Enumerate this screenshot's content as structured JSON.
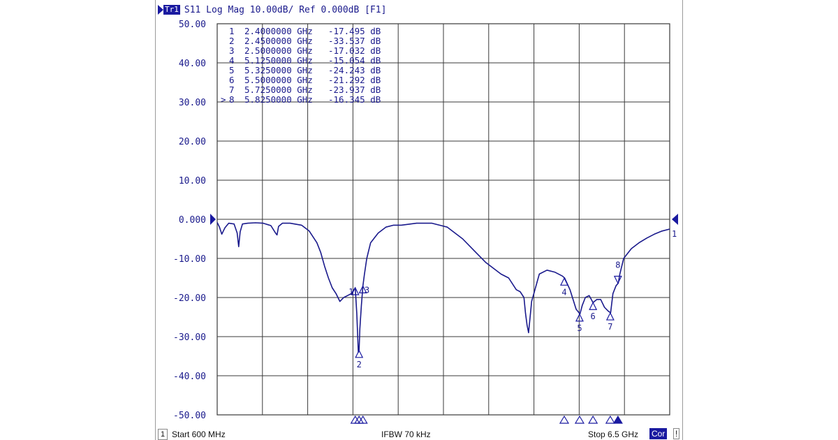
{
  "header": {
    "trace_badge": "Tr1",
    "title": "S11 Log Mag 10.00dB/ Ref 0.000dB [F1]"
  },
  "footer": {
    "channel": "1",
    "start": "Start 600 MHz",
    "ifbw": "IFBW 70 kHz",
    "stop": "Stop 6.5 GHz",
    "cor": "Cor",
    "status": "!"
  },
  "colors": {
    "trace": "#1a1a8c",
    "grid": "#3a3a3a",
    "marker": "#1a1aa0"
  },
  "chart_data": {
    "type": "line",
    "title": "S11 Log Mag 10.00dB/ Ref 0.000dB [F1]",
    "xlabel": "",
    "ylabel": "",
    "xlim": [
      0.6,
      6.5
    ],
    "ylim": [
      -50,
      50
    ],
    "x_unit": "GHz",
    "y_unit": "dB",
    "grid": true,
    "ytick_labels": [
      "50.00",
      "40.00",
      "30.00",
      "20.00",
      "10.00",
      "0.000",
      "-10.00",
      "-20.00",
      "-30.00",
      "-40.00",
      "-50.00"
    ],
    "reference_level": 0.0,
    "reference_label": "1",
    "series": [
      {
        "name": "S11",
        "x": [
          0.6,
          0.63,
          0.66,
          0.7,
          0.75,
          0.82,
          0.86,
          0.88,
          0.9,
          0.93,
          1.0,
          1.1,
          1.2,
          1.3,
          1.36,
          1.38,
          1.4,
          1.45,
          1.55,
          1.7,
          1.8,
          1.9,
          1.95,
          2.0,
          2.05,
          2.1,
          2.15,
          2.2,
          2.25,
          2.3,
          2.35,
          2.4,
          2.42,
          2.44,
          2.45,
          2.46,
          2.48,
          2.5,
          2.52,
          2.55,
          2.6,
          2.7,
          2.8,
          2.9,
          3.0,
          3.2,
          3.4,
          3.6,
          3.8,
          3.9,
          4.0,
          4.1,
          4.2,
          4.3,
          4.4,
          4.5,
          4.55,
          4.6,
          4.62,
          4.64,
          4.66,
          4.7,
          4.8,
          4.9,
          5.0,
          5.1,
          5.13,
          5.2,
          5.28,
          5.33,
          5.36,
          5.4,
          5.45,
          5.5,
          5.55,
          5.6,
          5.65,
          5.7,
          5.73,
          5.76,
          5.8,
          5.83,
          5.85,
          5.9,
          6.0,
          6.1,
          6.2,
          6.3,
          6.4,
          6.5
        ],
        "y": [
          -0.8,
          -2.0,
          -3.8,
          -2.2,
          -1.0,
          -1.2,
          -3.5,
          -7.0,
          -3.2,
          -1.2,
          -1.0,
          -0.9,
          -1.0,
          -1.6,
          -3.5,
          -4.0,
          -1.8,
          -1.0,
          -1.0,
          -1.5,
          -3.0,
          -6.0,
          -8.5,
          -12.0,
          -15.0,
          -17.5,
          -19.0,
          -21.0,
          -20.0,
          -19.5,
          -19.0,
          -17.5,
          -24.0,
          -34.0,
          -33.5,
          -28.0,
          -22.0,
          -17.0,
          -14.0,
          -10.0,
          -6.0,
          -3.5,
          -2.0,
          -1.5,
          -1.5,
          -1.0,
          -1.0,
          -2.0,
          -5.0,
          -7.0,
          -9.0,
          -11.0,
          -12.5,
          -14.0,
          -15.0,
          -18.0,
          -18.5,
          -20.0,
          -24.0,
          -27.0,
          -29.0,
          -21.0,
          -14.0,
          -13.0,
          -13.5,
          -14.5,
          -15.0,
          -18.0,
          -23.0,
          -24.2,
          -22.0,
          -20.0,
          -19.5,
          -21.3,
          -20.5,
          -20.5,
          -22.5,
          -23.5,
          -23.9,
          -19.0,
          -17.0,
          -16.3,
          -14.0,
          -10.0,
          -7.5,
          -6.0,
          -4.8,
          -3.8,
          -3.0,
          -2.5
        ]
      }
    ],
    "markers": [
      {
        "id": "1",
        "active": false,
        "freq_label": "2.4000000 GHz",
        "value_label": "-17.495 dB",
        "freq_ghz": 2.4,
        "value_db": -17.495
      },
      {
        "id": "2",
        "active": false,
        "freq_label": "2.4500000 GHz",
        "value_label": "-33.537 dB",
        "freq_ghz": 2.45,
        "value_db": -33.537
      },
      {
        "id": "3",
        "active": false,
        "freq_label": "2.5000000 GHz",
        "value_label": "-17.032 dB",
        "freq_ghz": 2.5,
        "value_db": -17.032
      },
      {
        "id": "4",
        "active": false,
        "freq_label": "5.1250000 GHz",
        "value_label": "-15.054 dB",
        "freq_ghz": 5.125,
        "value_db": -15.054
      },
      {
        "id": "5",
        "active": false,
        "freq_label": "5.3250000 GHz",
        "value_label": "-24.243 dB",
        "freq_ghz": 5.325,
        "value_db": -24.243
      },
      {
        "id": "6",
        "active": false,
        "freq_label": "5.5000000 GHz",
        "value_label": "-21.292 dB",
        "freq_ghz": 5.5,
        "value_db": -21.292
      },
      {
        "id": "7",
        "active": false,
        "freq_label": "5.7250000 GHz",
        "value_label": "-23.937 dB",
        "freq_ghz": 5.725,
        "value_db": -23.937
      },
      {
        "id": "8",
        "active": true,
        "freq_label": "5.8250000 GHz",
        "value_label": "-16.345 dB",
        "freq_ghz": 5.825,
        "value_db": -16.345
      }
    ]
  }
}
